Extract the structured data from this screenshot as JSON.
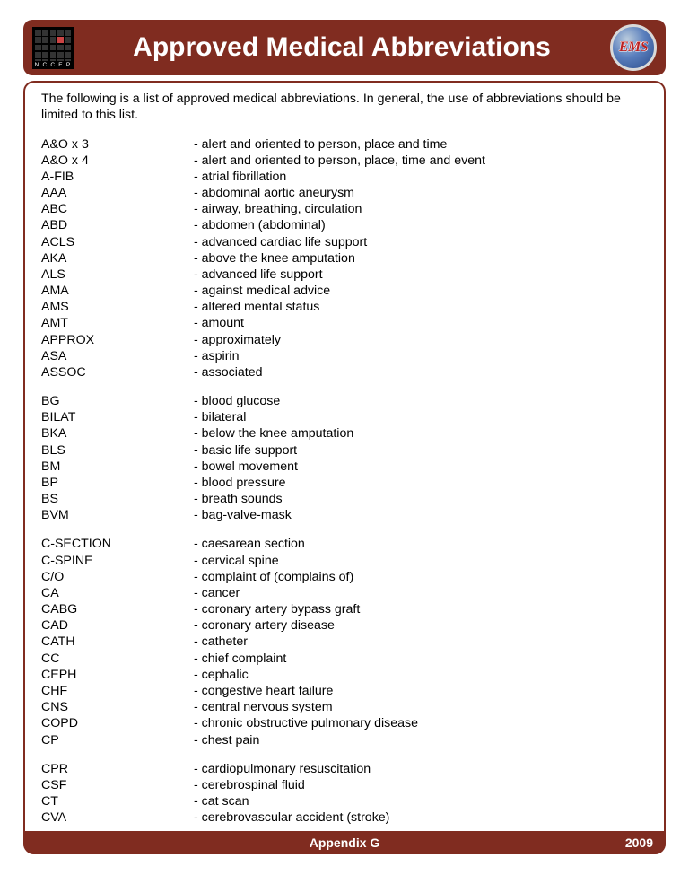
{
  "header": {
    "title": "Approved Medical Abbreviations",
    "logo_left_label": "N C C E P",
    "logo_right_text": "EMS"
  },
  "intro": "The following is a list of approved medical abbreviations.  In general, the use of abbreviations should be limited to this list.",
  "groups": [
    [
      {
        "abbr": "A&O x 3",
        "def": "- alert and oriented to person, place and time"
      },
      {
        "abbr": "A&O x 4",
        "def": "- alert and oriented to person, place, time and event"
      },
      {
        "abbr": "A-FIB",
        "def": "- atrial fibrillation"
      },
      {
        "abbr": "AAA",
        "def": "- abdominal aortic aneurysm"
      },
      {
        "abbr": "ABC",
        "def": "- airway, breathing, circulation"
      },
      {
        "abbr": "ABD",
        "def": "- abdomen (abdominal)"
      },
      {
        "abbr": "ACLS",
        "def": "- advanced cardiac life support"
      },
      {
        "abbr": "AKA",
        "def": "- above the knee amputation"
      },
      {
        "abbr": "ALS",
        "def": "- advanced life support"
      },
      {
        "abbr": "AMA",
        "def": "- against medical advice"
      },
      {
        "abbr": "AMS",
        "def": "- altered mental status"
      },
      {
        "abbr": "AMT",
        "def": "- amount"
      },
      {
        "abbr": "APPROX",
        "def": "- approximately"
      },
      {
        "abbr": "ASA",
        "def": "- aspirin"
      },
      {
        "abbr": "ASSOC",
        "def": "- associated"
      }
    ],
    [
      {
        "abbr": "BG",
        "def": "- blood glucose"
      },
      {
        "abbr": "BILAT",
        "def": "- bilateral"
      },
      {
        "abbr": "BKA",
        "def": "- below the knee amputation"
      },
      {
        "abbr": "BLS",
        "def": "- basic life support"
      },
      {
        "abbr": "BM",
        "def": "- bowel movement"
      },
      {
        "abbr": "BP",
        "def": "- blood pressure"
      },
      {
        "abbr": "BS",
        "def": "- breath sounds"
      },
      {
        "abbr": "BVM",
        "def": "- bag-valve-mask"
      }
    ],
    [
      {
        "abbr": "C-SECTION",
        "def": "- caesarean section"
      },
      {
        "abbr": "C-SPINE",
        "def": "- cervical spine"
      },
      {
        "abbr": "C/O",
        "def": "- complaint of (complains of)"
      },
      {
        "abbr": "CA",
        "def": "- cancer"
      },
      {
        "abbr": "CABG",
        "def": "- coronary artery bypass graft"
      },
      {
        "abbr": "CAD",
        "def": "- coronary artery disease"
      },
      {
        "abbr": "CATH",
        "def": "- catheter"
      },
      {
        "abbr": "CC",
        "def": "- chief complaint"
      },
      {
        "abbr": "CEPH",
        "def": "- cephalic"
      },
      {
        "abbr": "CHF",
        "def": "- congestive heart failure"
      },
      {
        "abbr": "CNS",
        "def": "- central nervous system"
      },
      {
        "abbr": "COPD",
        "def": "- chronic obstructive pulmonary disease"
      },
      {
        "abbr": "CP",
        "def": "- chest pain"
      }
    ],
    [
      {
        "abbr": "CPR",
        "def": "- cardiopulmonary resuscitation"
      },
      {
        "abbr": "CSF",
        "def": "- cerebrospinal fluid"
      },
      {
        "abbr": "CT",
        "def": "- cat scan"
      },
      {
        "abbr": "CVA",
        "def": "- cerebrovascular accident (stroke)"
      }
    ]
  ],
  "footer": {
    "appendix": "Appendix G",
    "year": "2009"
  },
  "colors": {
    "brand": "#802c20",
    "text": "#000000",
    "white": "#ffffff"
  }
}
